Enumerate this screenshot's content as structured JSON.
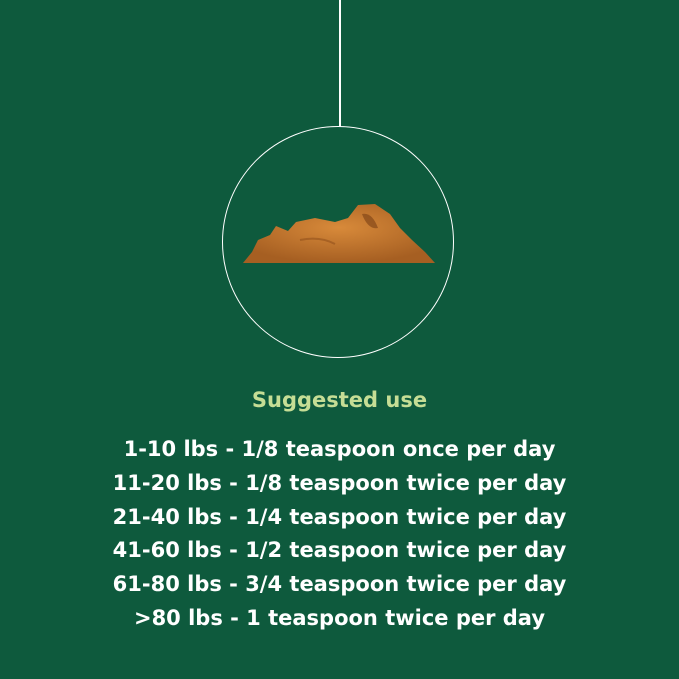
{
  "colors": {
    "background": "#0e5a3d",
    "title": "#c5dd95",
    "text": "#ffffff",
    "powder": "#c7792f"
  },
  "image": {
    "icon": "powder-pile-icon"
  },
  "title": "Suggested use",
  "dosages": [
    "1-10 lbs - 1/8 teaspoon once per day",
    "11-20 lbs - 1/8 teaspoon twice per day",
    "21-40 lbs - 1/4 teaspoon twice per day",
    "41-60 lbs - 1/2 teaspoon twice per day",
    "61-80 lbs - 3/4 teaspoon twice per day",
    ">80 lbs - 1 teaspoon twice per day"
  ]
}
